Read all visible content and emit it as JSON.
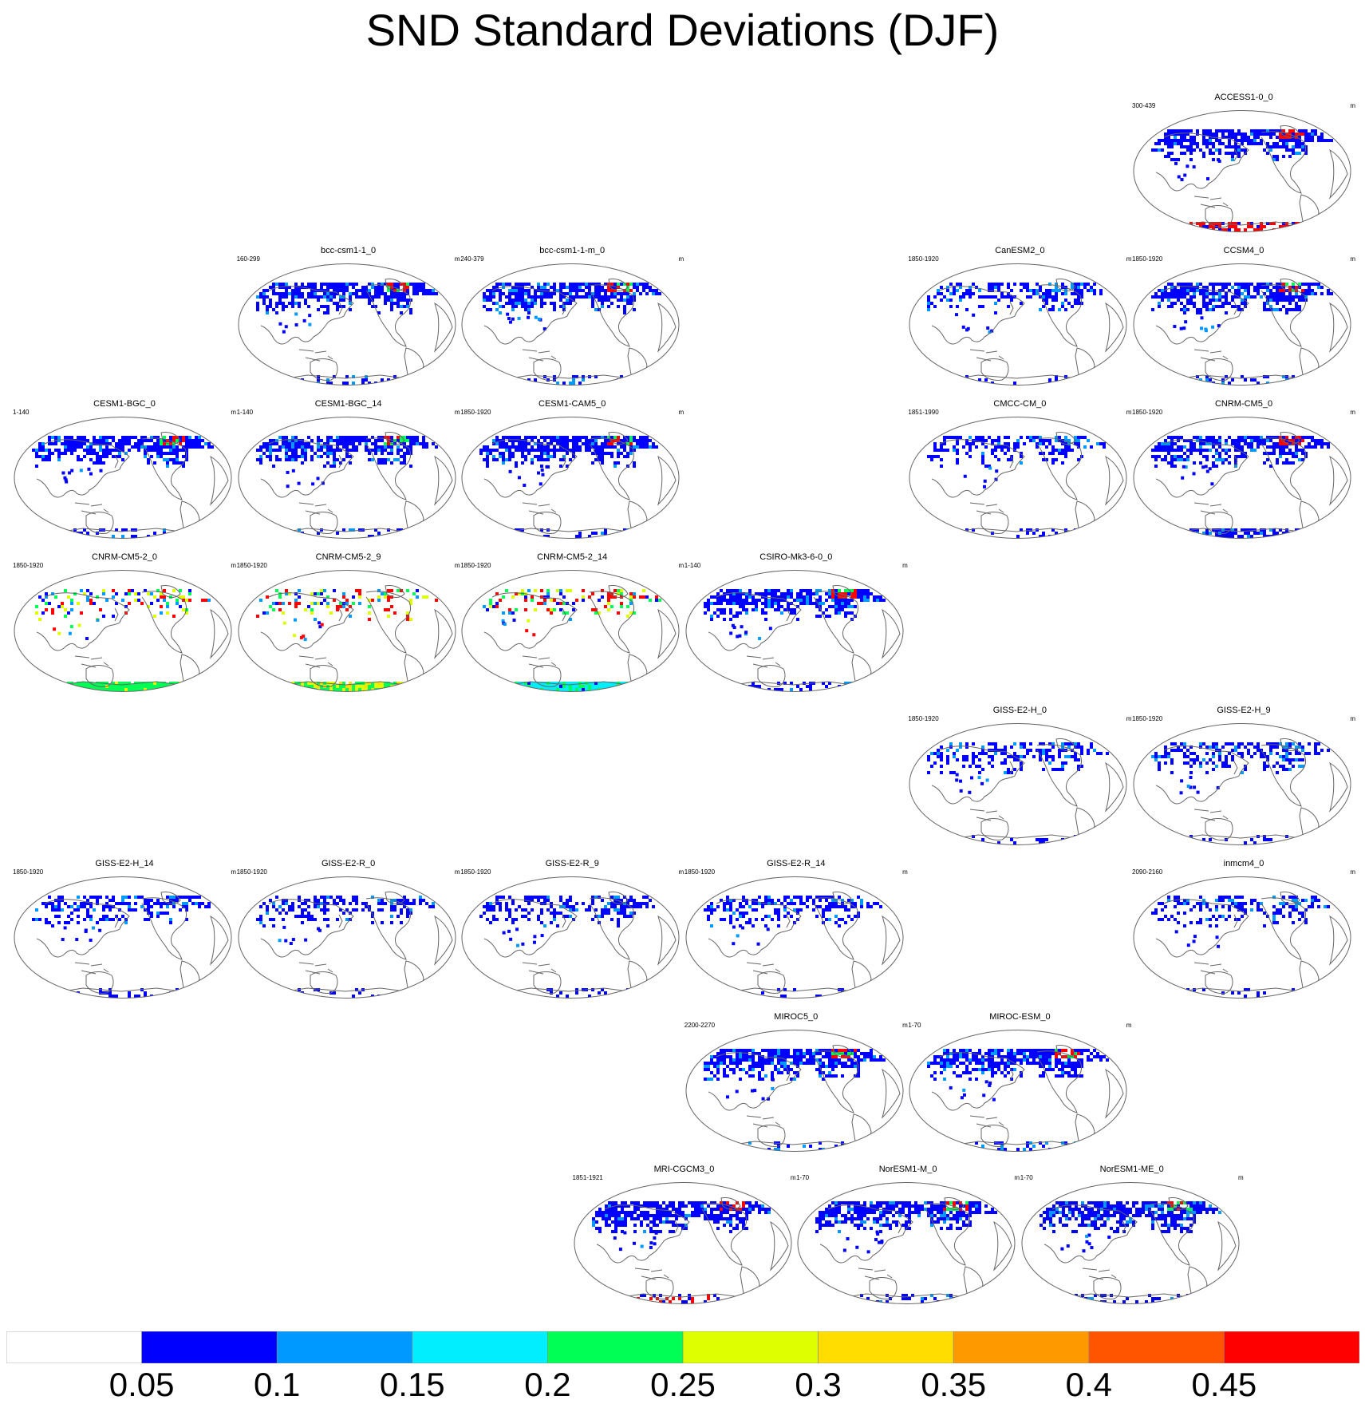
{
  "title": "SND Standard Deviations (DJF)",
  "colors": {
    "land": "#ffffff",
    "coast": "#666666",
    "frame": "#666666"
  },
  "chart_data": {
    "type": "heatmap",
    "title": "SND Standard Deviations (DJF)",
    "variable": "SND",
    "season": "DJF",
    "units": "m",
    "colorbar": {
      "levels": [
        "0.05",
        "0.1",
        "0.15",
        "0.2",
        "0.25",
        "0.3",
        "0.35",
        "0.4",
        "0.45"
      ],
      "colors": [
        "#ffffff",
        "#0000ff",
        "#0099ff",
        "#00eeff",
        "#00ff55",
        "#ddff00",
        "#ffdd00",
        "#ff9900",
        "#ff5500",
        "#ff0000"
      ]
    },
    "grid": {
      "columns": 6,
      "rows": 8
    },
    "panels": [
      {
        "name": "ACCESS1-0_0",
        "years": "300-439",
        "units": "m",
        "row": 0,
        "col": 5,
        "style": "access"
      },
      {
        "name": "bcc-csm1-1_0",
        "years": "160-299",
        "units": "m",
        "row": 1,
        "col": 1,
        "style": "blue"
      },
      {
        "name": "bcc-csm1-1-m_0",
        "years": "240-379",
        "units": "m",
        "row": 1,
        "col": 2,
        "style": "blue"
      },
      {
        "name": "CanESM2_0",
        "years": "1850-1920",
        "units": "m",
        "row": 1,
        "col": 4,
        "style": "sparse"
      },
      {
        "name": "CCSM4_0",
        "years": "1850-1920",
        "units": "m",
        "row": 1,
        "col": 5,
        "style": "blue"
      },
      {
        "name": "CESM1-BGC_0",
        "years": "1-140",
        "units": "m",
        "row": 2,
        "col": 0,
        "style": "blue"
      },
      {
        "name": "CESM1-BGC_14",
        "years": "1-140",
        "units": "m",
        "row": 2,
        "col": 1,
        "style": "blue"
      },
      {
        "name": "CESM1-CAM5_0",
        "years": "1850-1920",
        "units": "m",
        "row": 2,
        "col": 2,
        "style": "blue"
      },
      {
        "name": "CMCC-CM_0",
        "years": "1851-1990",
        "units": "m",
        "row": 2,
        "col": 4,
        "style": "sparse"
      },
      {
        "name": "CNRM-CM5_0",
        "years": "1850-1920",
        "units": "m",
        "row": 2,
        "col": 5,
        "style": "antblue"
      },
      {
        "name": "CNRM-CM5-2_0",
        "years": "1850-1920",
        "units": "m",
        "row": 3,
        "col": 0,
        "style": "cnrm-green"
      },
      {
        "name": "CNRM-CM5-2_9",
        "years": "1850-1920",
        "units": "m",
        "row": 3,
        "col": 1,
        "style": "cnrm-yellow"
      },
      {
        "name": "CNRM-CM5-2_14",
        "years": "1850-1920",
        "units": "m",
        "row": 3,
        "col": 2,
        "style": "cnrm-cyan"
      },
      {
        "name": "CSIRO-Mk3-6-0_0",
        "years": "1-140",
        "units": "m",
        "row": 3,
        "col": 3,
        "style": "blue"
      },
      {
        "name": "GISS-E2-H_0",
        "years": "1850-1920",
        "units": "m",
        "row": 4,
        "col": 4,
        "style": "sparse"
      },
      {
        "name": "GISS-E2-H_9",
        "years": "1850-1920",
        "units": "m",
        "row": 4,
        "col": 5,
        "style": "sparse"
      },
      {
        "name": "GISS-E2-H_14",
        "years": "1850-1920",
        "units": "m",
        "row": 5,
        "col": 0,
        "style": "sparse"
      },
      {
        "name": "GISS-E2-R_0",
        "years": "1850-1920",
        "units": "m",
        "row": 5,
        "col": 1,
        "style": "sparse"
      },
      {
        "name": "GISS-E2-R_9",
        "years": "1850-1920",
        "units": "m",
        "row": 5,
        "col": 2,
        "style": "sparse"
      },
      {
        "name": "GISS-E2-R_14",
        "years": "1850-1920",
        "units": "m",
        "row": 5,
        "col": 3,
        "style": "sparse"
      },
      {
        "name": "inmcm4_0",
        "years": "2090-2160",
        "units": "m",
        "row": 5,
        "col": 5,
        "style": "sparse"
      },
      {
        "name": "MIROC5_0",
        "years": "2200-2270",
        "units": "m",
        "row": 6,
        "col": 3,
        "style": "blue"
      },
      {
        "name": "MIROC-ESM_0",
        "years": "1-70",
        "units": "m",
        "row": 6,
        "col": 4,
        "style": "blue"
      },
      {
        "name": "MRI-CGCM3_0",
        "years": "1851-1921",
        "units": "m",
        "row": 7,
        "col": 2.5,
        "style": "mri"
      },
      {
        "name": "NorESM1-M_0",
        "years": "1-70",
        "units": "m",
        "row": 7,
        "col": 3.5,
        "style": "blue"
      },
      {
        "name": "NorESM1-ME_0",
        "years": "1-70",
        "units": "m",
        "row": 7,
        "col": 4.5,
        "style": "blue"
      }
    ]
  }
}
